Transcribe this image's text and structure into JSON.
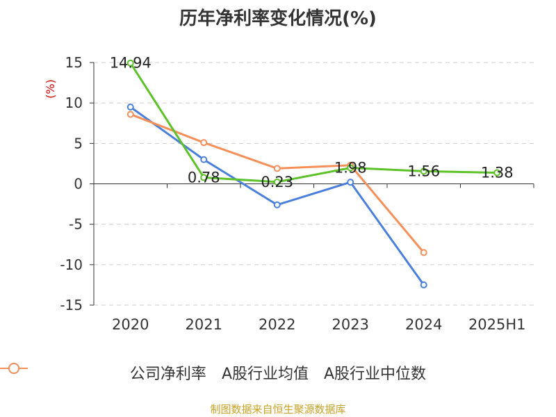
{
  "chart_data": {
    "type": "line",
    "title": "历年净利率变化情况(%)",
    "ylabel": "(%)",
    "xlabel": "",
    "categories": [
      "2020",
      "2021",
      "2022",
      "2023",
      "2024",
      "2025H1"
    ],
    "ylim": [
      -15,
      15
    ],
    "yticks": [
      15,
      10,
      5,
      0,
      -5,
      -10,
      -15
    ],
    "grid": true,
    "series": [
      {
        "name": "公司净利率",
        "color": "#5cc228",
        "values": [
          14.94,
          0.78,
          0.23,
          1.98,
          1.56,
          1.38
        ],
        "labels": [
          "14.94",
          "0.78",
          "0.23",
          "1.98",
          "1.56",
          "1.38"
        ]
      },
      {
        "name": "A股行业均值",
        "color": "#4a7fdb",
        "values": [
          9.5,
          3.0,
          -2.6,
          0.2,
          -12.5,
          null
        ]
      },
      {
        "name": "A股行业中位数",
        "color": "#f5905a",
        "values": [
          8.6,
          5.1,
          1.9,
          2.3,
          -8.5,
          null
        ]
      }
    ]
  },
  "source": "制图数据来自恒生聚源数据库"
}
